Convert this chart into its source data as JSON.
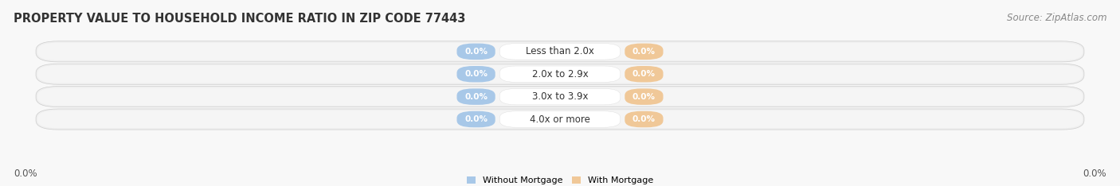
{
  "title": "PROPERTY VALUE TO HOUSEHOLD INCOME RATIO IN ZIP CODE 77443",
  "source": "Source: ZipAtlas.com",
  "categories": [
    "Less than 2.0x",
    "2.0x to 2.9x",
    "3.0x to 3.9x",
    "4.0x or more"
  ],
  "without_mortgage": [
    0.0,
    0.0,
    0.0,
    0.0
  ],
  "with_mortgage": [
    0.0,
    0.0,
    0.0,
    0.0
  ],
  "without_mortgage_color": "#a8c8e8",
  "with_mortgage_color": "#f0c898",
  "bar_bg_color": "#e4e4e4",
  "bar_bg_color2": "#f0f0f0",
  "background_color": "#f8f8f8",
  "title_fontsize": 10.5,
  "source_fontsize": 8.5,
  "label_fontsize": 7.5,
  "cat_fontsize": 8.5,
  "axis_label_fontsize": 8.5,
  "legend_without_label": "Without Mortgage",
  "legend_with_label": "With Mortgage",
  "x_left_label": "0.0%",
  "x_right_label": "0.0%"
}
